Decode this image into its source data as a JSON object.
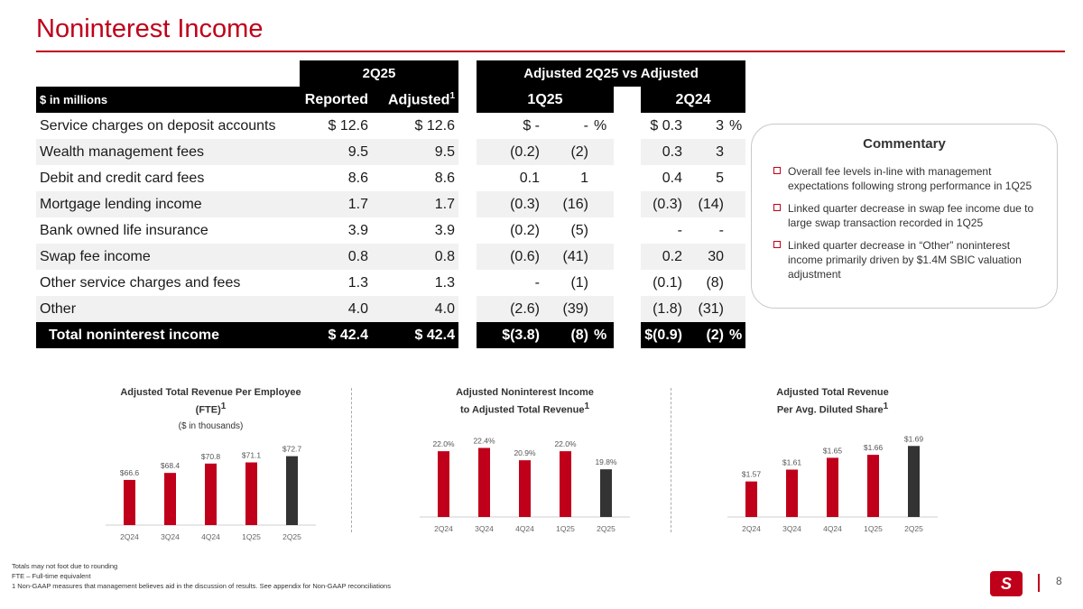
{
  "title": "Noninterest Income",
  "table": {
    "header_group_left": "2Q25",
    "header_group_right": "Adjusted 2Q25 vs Adjusted",
    "unit_label": "$ in millions",
    "col_reported": "Reported",
    "col_adjusted": "Adjusted",
    "col_adjusted_sup": "1",
    "col_1q25": "1Q25",
    "col_2q24": "2Q24",
    "rows": [
      {
        "label": "Service charges on deposit accounts",
        "reported": "$ 12.6",
        "adjusted": "$ 12.6",
        "q_dollar": "$    -",
        "q_pct": "-",
        "q_pct_sign": "%",
        "y_dollar": "$ 0.3",
        "y_pct": "3",
        "y_pct_sign": "%"
      },
      {
        "label": "Wealth management fees",
        "reported": "9.5",
        "adjusted": "9.5",
        "q_dollar": "(0.2)",
        "q_pct": "(2)",
        "q_pct_sign": "",
        "y_dollar": "0.3",
        "y_pct": "3",
        "y_pct_sign": ""
      },
      {
        "label": "Debit and credit card fees",
        "reported": "8.6",
        "adjusted": "8.6",
        "q_dollar": "0.1",
        "q_pct": "1",
        "q_pct_sign": "",
        "y_dollar": "0.4",
        "y_pct": "5",
        "y_pct_sign": ""
      },
      {
        "label": "Mortgage lending income",
        "reported": "1.7",
        "adjusted": "1.7",
        "q_dollar": "(0.3)",
        "q_pct": "(16)",
        "q_pct_sign": "",
        "y_dollar": "(0.3)",
        "y_pct": "(14)",
        "y_pct_sign": ""
      },
      {
        "label": "Bank owned life insurance",
        "reported": "3.9",
        "adjusted": "3.9",
        "q_dollar": "(0.2)",
        "q_pct": "(5)",
        "q_pct_sign": "",
        "y_dollar": "-",
        "y_pct": "-",
        "y_pct_sign": ""
      },
      {
        "label": "Swap fee income",
        "reported": "0.8",
        "adjusted": "0.8",
        "q_dollar": "(0.6)",
        "q_pct": "(41)",
        "q_pct_sign": "",
        "y_dollar": "0.2",
        "y_pct": "30",
        "y_pct_sign": ""
      },
      {
        "label": "Other service charges and fees",
        "reported": "1.3",
        "adjusted": "1.3",
        "q_dollar": "-",
        "q_pct": "(1)",
        "q_pct_sign": "",
        "y_dollar": "(0.1)",
        "y_pct": "(8)",
        "y_pct_sign": ""
      },
      {
        "label": "Other",
        "reported": "4.0",
        "adjusted": "4.0",
        "q_dollar": "(2.6)",
        "q_pct": "(39)",
        "q_pct_sign": "",
        "y_dollar": "(1.8)",
        "y_pct": "(31)",
        "y_pct_sign": ""
      }
    ],
    "total": {
      "label": "Total noninterest income",
      "reported": "$ 42.4",
      "adjusted": "$ 42.4",
      "q_dollar": "$(3.8)",
      "q_pct": "(8)",
      "q_pct_sign": "%",
      "y_dollar": "$(0.9)",
      "y_pct": "(2)",
      "y_pct_sign": "%"
    }
  },
  "commentary": {
    "title": "Commentary",
    "bullets": [
      "Overall fee levels in-line with management expectations following strong performance in 1Q25",
      "Linked quarter decrease in swap fee income due to large swap transaction recorded in 1Q25",
      "Linked quarter decrease in “Other” noninterest income primarily driven by $1.4M SBIC valuation adjustment"
    ]
  },
  "colors": {
    "brand_red": "#c0001a",
    "bar_red": "#c0001a",
    "bar_dark": "#333333"
  },
  "chart_data": [
    {
      "type": "bar",
      "title": "Adjusted Total Revenue Per Employee (FTE)",
      "title_line1": "Adjusted Total Revenue Per Employee",
      "title_line2": "(FTE)",
      "title_sup": "1",
      "subtitle": "($ in thousands)",
      "categories": [
        "2Q24",
        "3Q24",
        "4Q24",
        "1Q25",
        "2Q25"
      ],
      "values": [
        66.6,
        68.4,
        70.8,
        71.1,
        72.7
      ],
      "labels": [
        "$66.6",
        "$68.4",
        "$70.8",
        "$71.1",
        "$72.7"
      ],
      "ylim": [
        55,
        74
      ]
    },
    {
      "type": "bar",
      "title": "Adjusted Noninterest Income to Adjusted Total Revenue",
      "title_line1": "Adjusted Noninterest Income",
      "title_line2": "to Adjusted Total Revenue",
      "title_sup": "1",
      "categories": [
        "2Q24",
        "3Q24",
        "4Q24",
        "1Q25",
        "2Q25"
      ],
      "values": [
        22.0,
        22.4,
        20.9,
        22.0,
        19.8
      ],
      "labels": [
        "22.0%",
        "22.4%",
        "20.9%",
        "22.0%",
        "19.8%"
      ],
      "ylim": [
        14,
        23
      ]
    },
    {
      "type": "bar",
      "title": "Adjusted Total Revenue Per Avg. Diluted Share",
      "title_line1": "Adjusted Total Revenue",
      "title_line2": "Per Avg. Diluted Share",
      "title_sup": "1",
      "categories": [
        "2Q24",
        "3Q24",
        "4Q24",
        "1Q25",
        "2Q25"
      ],
      "values": [
        1.57,
        1.61,
        1.65,
        1.66,
        1.69
      ],
      "labels": [
        "$1.57",
        "$1.61",
        "$1.65",
        "$1.66",
        "$1.69"
      ],
      "ylim": [
        1.45,
        1.7
      ]
    }
  ],
  "footnotes": [
    "Totals may not foot due to rounding",
    "FTE – Full-time equivalent",
    "1   Non-GAAP measures that management believes aid in the discussion of results. See appendix for Non-GAAP reconciliations"
  ],
  "page_number": "8",
  "logo_text": "S"
}
